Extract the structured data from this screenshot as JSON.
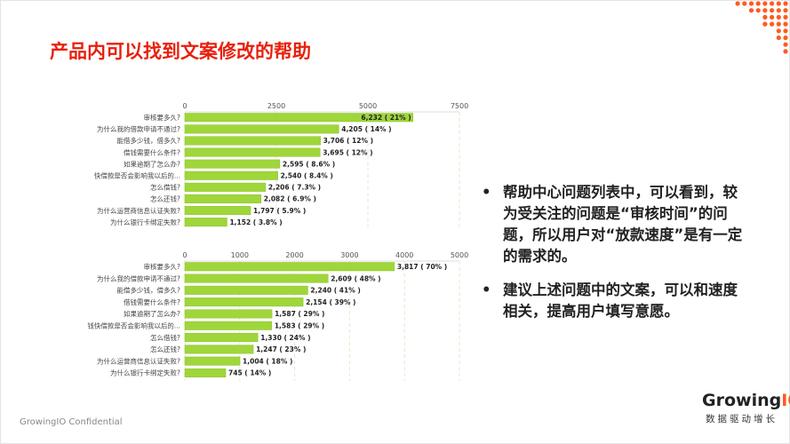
{
  "title": "产品内可以找到文案修改的帮助",
  "bullets": [
    "帮助中心问题列表中，可以看到，较为受关注的问题是“审核时间”的问题，所以用户对“放款速度”是有一定的需求的。",
    "建议上述问题中的文案，可以和速度相关，提高用户填写意愿。"
  ],
  "footer": "GrowingIO Confidential",
  "logo": {
    "text": "GrowingIO",
    "tagline": "数据驱动增长"
  },
  "colors": {
    "bar": "#9fd63a",
    "title": "#e8200c",
    "accent": "#ff5a1f"
  },
  "chart_data": [
    {
      "type": "bar",
      "orientation": "horizontal",
      "xlim": [
        0,
        7500
      ],
      "ticks": [
        "0",
        "2500",
        "5000",
        "7500"
      ],
      "grid": true,
      "categories": [
        "审核要多久?",
        "为什么我的借款申请不通过?",
        "能借多少钱，借多久?",
        "借钱需要什么条件?",
        "如果逾期了怎么办?",
        "快借款是否会影响我以后的...",
        "怎么借钱?",
        "怎么还钱?",
        "为什么运营商信息认证失败?",
        "为什么银行卡绑定失败?"
      ],
      "values": [
        6232,
        4205,
        3706,
        3695,
        2595,
        2540,
        2206,
        2082,
        1797,
        1152
      ],
      "labels": [
        "6,232 ( 21% )",
        "4,205 ( 14% )",
        "3,706 ( 12% )",
        "3,695 ( 12% )",
        "2,595 ( 8.6% )",
        "2,540 ( 8.4% )",
        "2,206 ( 7.3% )",
        "2,082 ( 6.9% )",
        "1,797 ( 5.9% )",
        "1,152 ( 3.8% )"
      ]
    },
    {
      "type": "bar",
      "orientation": "horizontal",
      "xlim": [
        0,
        5000
      ],
      "ticks": [
        "0",
        "1000",
        "2000",
        "3000",
        "4000",
        "5000"
      ],
      "grid": true,
      "categories": [
        "审核要多久?",
        "为什么我的借款申请不通过?",
        "能借多少钱，借多久?",
        "借钱需要什么条件?",
        "如果逾期了怎么办?",
        "钱快借款是否会影响我以后的...",
        "怎么借钱?",
        "怎么还钱?",
        "为什么运营商信息认证失败?",
        "为什么银行卡绑定失败?"
      ],
      "values": [
        3817,
        2609,
        2240,
        2154,
        1587,
        1583,
        1330,
        1247,
        1004,
        745
      ],
      "labels": [
        "3,817 ( 70% )",
        "2,609 ( 48% )",
        "2,240 ( 41% )",
        "2,154 ( 39% )",
        "1,587 ( 29% )",
        "1,583 ( 29% )",
        "1,330 ( 24% )",
        "1,247 ( 23% )",
        "1,004 ( 18% )",
        "745 ( 14% )"
      ]
    }
  ]
}
